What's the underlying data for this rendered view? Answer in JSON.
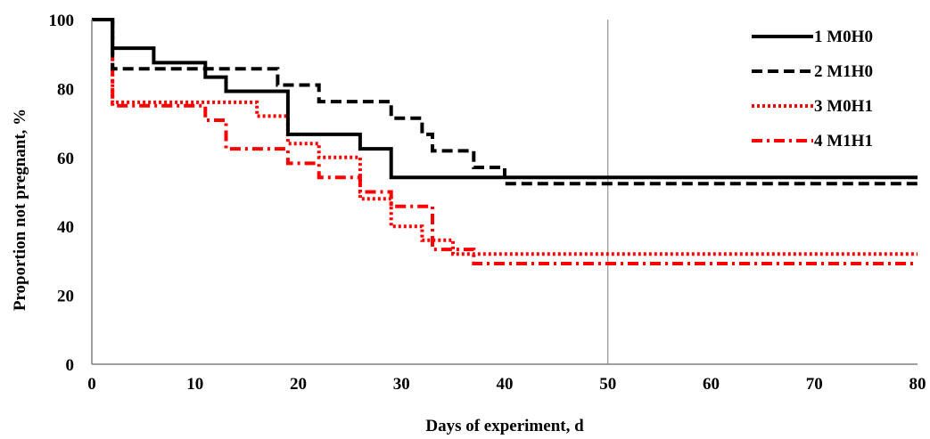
{
  "chart_data": {
    "type": "line",
    "step": true,
    "title": "",
    "xlabel": "Days of experiment, d",
    "ylabel": "Proportion not pregnant, %",
    "xlim": [
      0,
      80
    ],
    "ylim": [
      0,
      100
    ],
    "xticks": [
      0,
      10,
      20,
      30,
      40,
      50,
      60,
      70,
      80
    ],
    "yticks": [
      0,
      20,
      40,
      60,
      80,
      100
    ],
    "xtick_labels": [
      "0",
      "10",
      "20",
      "30",
      "40",
      "50",
      "60",
      "70",
      "80"
    ],
    "ytick_labels": [
      "0",
      "20",
      "40",
      "60",
      "80",
      "100"
    ],
    "grid": false,
    "reference_line_x": 50,
    "legend_position": "top-right",
    "series": [
      {
        "name": "1 M0H0",
        "color": "#000000",
        "style": "solid",
        "points": [
          [
            0,
            100
          ],
          [
            2,
            100
          ],
          [
            2,
            91.7
          ],
          [
            6,
            91.7
          ],
          [
            6,
            87.5
          ],
          [
            11,
            87.5
          ],
          [
            11,
            83.3
          ],
          [
            13,
            83.3
          ],
          [
            13,
            79.2
          ],
          [
            19,
            79.2
          ],
          [
            19,
            66.7
          ],
          [
            26,
            66.7
          ],
          [
            26,
            62.5
          ],
          [
            29,
            62.5
          ],
          [
            29,
            54.2
          ],
          [
            80,
            54.2
          ]
        ]
      },
      {
        "name": "2 M1H0",
        "color": "#000000",
        "style": "dashed",
        "points": [
          [
            0,
            100
          ],
          [
            2,
            100
          ],
          [
            2,
            85.7
          ],
          [
            18,
            85.7
          ],
          [
            18,
            81
          ],
          [
            22,
            81
          ],
          [
            22,
            76.2
          ],
          [
            29,
            76.2
          ],
          [
            29,
            71.4
          ],
          [
            32,
            71.4
          ],
          [
            32,
            66.7
          ],
          [
            33,
            66.7
          ],
          [
            33,
            61.9
          ],
          [
            37,
            61.9
          ],
          [
            37,
            57.1
          ],
          [
            40,
            57.1
          ],
          [
            40,
            52.4
          ],
          [
            80,
            52.4
          ]
        ]
      },
      {
        "name": "3 M0H1",
        "color": "#ff0000",
        "style": "dotted",
        "points": [
          [
            0,
            100
          ],
          [
            2,
            100
          ],
          [
            2,
            76
          ],
          [
            16,
            76
          ],
          [
            16,
            72
          ],
          [
            19,
            72
          ],
          [
            19,
            64
          ],
          [
            22,
            64
          ],
          [
            22,
            60
          ],
          [
            26,
            60
          ],
          [
            26,
            48
          ],
          [
            29,
            48
          ],
          [
            29,
            40
          ],
          [
            32,
            40
          ],
          [
            32,
            36
          ],
          [
            35,
            36
          ],
          [
            35,
            32
          ],
          [
            80,
            32
          ]
        ]
      },
      {
        "name": "4 M1H1",
        "color": "#ff0000",
        "style": "dashdot",
        "points": [
          [
            0,
            100
          ],
          [
            2,
            100
          ],
          [
            2,
            75
          ],
          [
            11,
            75
          ],
          [
            11,
            70.8
          ],
          [
            13,
            70.8
          ],
          [
            13,
            62.5
          ],
          [
            19,
            62.5
          ],
          [
            19,
            58.3
          ],
          [
            22,
            58.3
          ],
          [
            22,
            54.2
          ],
          [
            26,
            54.2
          ],
          [
            26,
            50
          ],
          [
            29,
            50
          ],
          [
            29,
            45.8
          ],
          [
            33,
            45.8
          ],
          [
            33,
            33.3
          ],
          [
            37,
            33.3
          ],
          [
            37,
            29.2
          ],
          [
            80,
            29.2
          ]
        ]
      }
    ]
  }
}
